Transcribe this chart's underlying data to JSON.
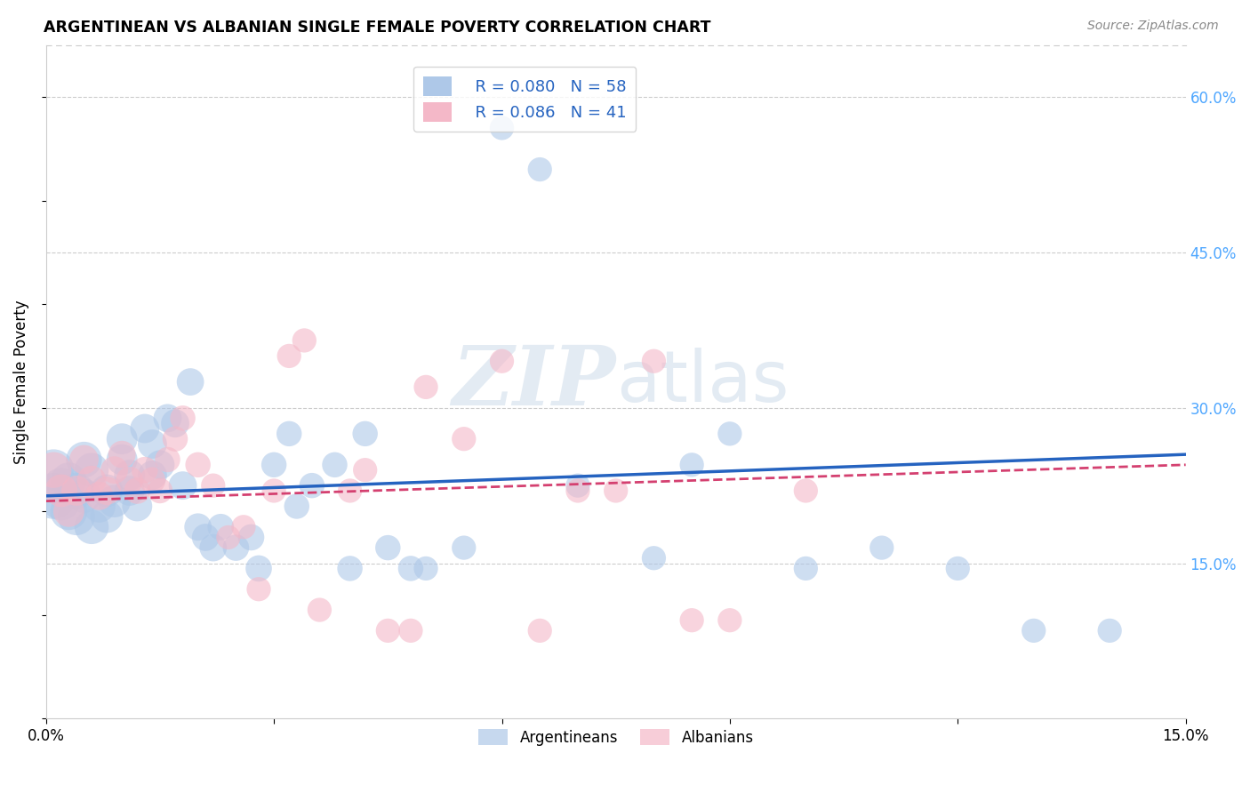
{
  "title": "ARGENTINEAN VS ALBANIAN SINGLE FEMALE POVERTY CORRELATION CHART",
  "source": "Source: ZipAtlas.com",
  "ylabel": "Single Female Poverty",
  "xlim": [
    0.0,
    0.15
  ],
  "ylim": [
    0.0,
    0.65
  ],
  "legend_r_blue": "R = 0.080",
  "legend_n_blue": "N = 58",
  "legend_r_pink": "R = 0.086",
  "legend_n_pink": "N = 41",
  "blue_color": "#aec8e8",
  "pink_color": "#f4b8c8",
  "blue_line_color": "#2563c0",
  "pink_line_color": "#d44070",
  "legend_text_color": "#2563c0",
  "watermark_color": "#c8d8e8",
  "right_axis_color": "#4da6ff",
  "argentineans_x": [
    0.001,
    0.001,
    0.002,
    0.002,
    0.003,
    0.003,
    0.004,
    0.004,
    0.005,
    0.005,
    0.006,
    0.006,
    0.007,
    0.008,
    0.008,
    0.009,
    0.01,
    0.01,
    0.011,
    0.011,
    0.012,
    0.013,
    0.014,
    0.014,
    0.015,
    0.016,
    0.017,
    0.018,
    0.019,
    0.02,
    0.021,
    0.022,
    0.023,
    0.025,
    0.027,
    0.028,
    0.03,
    0.032,
    0.033,
    0.035,
    0.038,
    0.04,
    0.042,
    0.045,
    0.048,
    0.05,
    0.055,
    0.06,
    0.065,
    0.07,
    0.08,
    0.085,
    0.09,
    0.1,
    0.11,
    0.12,
    0.13,
    0.14
  ],
  "argentineans_y": [
    0.215,
    0.24,
    0.21,
    0.225,
    0.2,
    0.23,
    0.195,
    0.22,
    0.25,
    0.215,
    0.185,
    0.24,
    0.205,
    0.22,
    0.195,
    0.21,
    0.27,
    0.25,
    0.235,
    0.22,
    0.205,
    0.28,
    0.235,
    0.265,
    0.245,
    0.29,
    0.285,
    0.225,
    0.325,
    0.185,
    0.175,
    0.165,
    0.185,
    0.165,
    0.175,
    0.145,
    0.245,
    0.275,
    0.205,
    0.225,
    0.245,
    0.145,
    0.275,
    0.165,
    0.145,
    0.145,
    0.165,
    0.57,
    0.53,
    0.225,
    0.155,
    0.245,
    0.275,
    0.145,
    0.165,
    0.145,
    0.085,
    0.085
  ],
  "argentineans_size": [
    200,
    160,
    140,
    120,
    130,
    120,
    130,
    120,
    120,
    110,
    110,
    110,
    100,
    100,
    100,
    100,
    90,
    90,
    90,
    85,
    85,
    80,
    80,
    80,
    80,
    75,
    75,
    75,
    70,
    70,
    70,
    70,
    65,
    65,
    65,
    65,
    60,
    60,
    60,
    60,
    60,
    60,
    60,
    60,
    60,
    55,
    55,
    55,
    55,
    55,
    55,
    55,
    55,
    55,
    55,
    55,
    55,
    55
  ],
  "albanians_x": [
    0.001,
    0.002,
    0.003,
    0.004,
    0.005,
    0.006,
    0.007,
    0.008,
    0.009,
    0.01,
    0.011,
    0.012,
    0.013,
    0.014,
    0.015,
    0.016,
    0.017,
    0.018,
    0.02,
    0.022,
    0.024,
    0.026,
    0.028,
    0.03,
    0.032,
    0.034,
    0.036,
    0.04,
    0.042,
    0.045,
    0.048,
    0.05,
    0.055,
    0.06,
    0.065,
    0.07,
    0.075,
    0.08,
    0.085,
    0.09,
    0.1
  ],
  "albanians_y": [
    0.24,
    0.22,
    0.2,
    0.22,
    0.25,
    0.23,
    0.215,
    0.22,
    0.24,
    0.255,
    0.23,
    0.22,
    0.24,
    0.23,
    0.22,
    0.25,
    0.27,
    0.29,
    0.245,
    0.225,
    0.175,
    0.185,
    0.125,
    0.22,
    0.35,
    0.365,
    0.105,
    0.22,
    0.24,
    0.085,
    0.085,
    0.32,
    0.27,
    0.345,
    0.085,
    0.22,
    0.22,
    0.345,
    0.095,
    0.095,
    0.22
  ],
  "albanians_size": [
    120,
    100,
    90,
    85,
    80,
    80,
    75,
    75,
    70,
    70,
    70,
    65,
    65,
    65,
    60,
    60,
    60,
    60,
    60,
    55,
    55,
    55,
    55,
    55,
    55,
    55,
    55,
    55,
    55,
    55,
    55,
    55,
    55,
    55,
    55,
    55,
    55,
    55,
    55,
    55,
    55
  ],
  "trend_x_start": 0.0,
  "trend_x_end": 0.15
}
